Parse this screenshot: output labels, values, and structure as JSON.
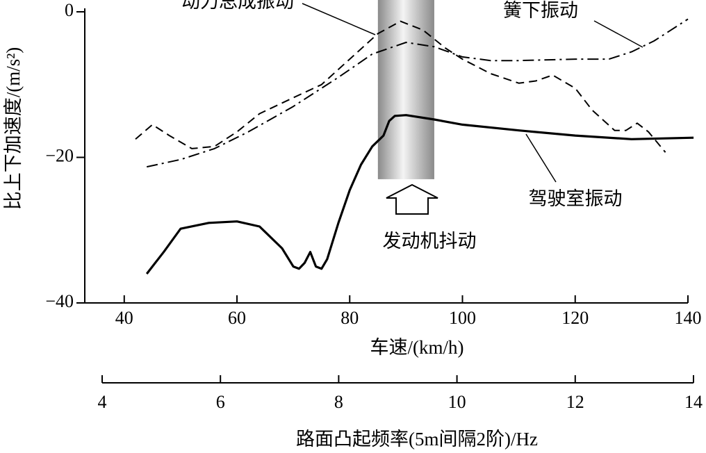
{
  "chart_data": {
    "type": "line",
    "y_label": "比上下加速度/(m/s²)",
    "x_label": "车速/(km/h)",
    "x2_label": "路面凸起频率(5m间隔2阶)/Hz",
    "xlim": [
      33,
      140
    ],
    "xticks": [
      40,
      60,
      80,
      100,
      120,
      140
    ],
    "ylim": [
      -40,
      0
    ],
    "yticks": [
      0,
      {
        "value": -20,
        "label": "−20"
      },
      {
        "value": -40,
        "label": "−40"
      }
    ],
    "x2lim": [
      4,
      14
    ],
    "x2ticks": [
      4,
      6,
      8,
      10,
      12,
      14
    ],
    "highlight": {
      "label": "发动机抖动",
      "x": [
        85,
        95
      ],
      "ymin": -23
    },
    "series": [
      {
        "name": "动力总成振动",
        "color": "#000",
        "style": "dashed",
        "x": [
          42,
          45,
          48,
          52,
          56,
          60,
          64,
          70,
          75,
          80,
          85,
          89,
          93,
          97,
          100,
          105,
          110,
          113,
          116,
          120,
          123,
          127,
          129,
          131,
          133,
          136
        ],
        "values": [
          -17.5,
          -15.5,
          -17,
          -18.8,
          -18.5,
          -16.5,
          -14,
          -11.8,
          -10,
          -6.5,
          -3,
          -1.3,
          -2.5,
          -5,
          -6.5,
          -8.5,
          -9.8,
          -9.5,
          -8.7,
          -10.5,
          -13.5,
          -16.3,
          -16.3,
          -15.3,
          -16.5,
          -19.3
        ]
      },
      {
        "name": "簧下振动",
        "color": "#000",
        "style": "dash-dot",
        "x": [
          44,
          50,
          56,
          62,
          70,
          78,
          84,
          90,
          95,
          100,
          105,
          110,
          120,
          126,
          130,
          134,
          137,
          140
        ],
        "values": [
          -21.3,
          -20.3,
          -18.8,
          -16.5,
          -13,
          -9,
          -5.8,
          -4.2,
          -4.8,
          -6.2,
          -6.7,
          -6.7,
          -6.5,
          -6.5,
          -5.5,
          -4,
          -2.5,
          -1
        ]
      },
      {
        "name": "驾驶室振动",
        "color": "#000",
        "style": "solid",
        "x": [
          44,
          45,
          47,
          50,
          55,
          60,
          64,
          68,
          70,
          71,
          72,
          73,
          74,
          75,
          76,
          78,
          80,
          82,
          84,
          86,
          87,
          88,
          90,
          95,
          100,
          110,
          120,
          130,
          141
        ],
        "values": [
          -36,
          -35,
          -33,
          -29.8,
          -29,
          -28.8,
          -29.5,
          -32.5,
          -35,
          -35.3,
          -34.5,
          -33,
          -35,
          -35.3,
          -34,
          -29,
          -24.5,
          -21,
          -18.5,
          -17,
          -15,
          -14.3,
          -14.2,
          -14.8,
          -15.5,
          -16.3,
          -17,
          -17.5,
          -17.3
        ]
      }
    ]
  }
}
